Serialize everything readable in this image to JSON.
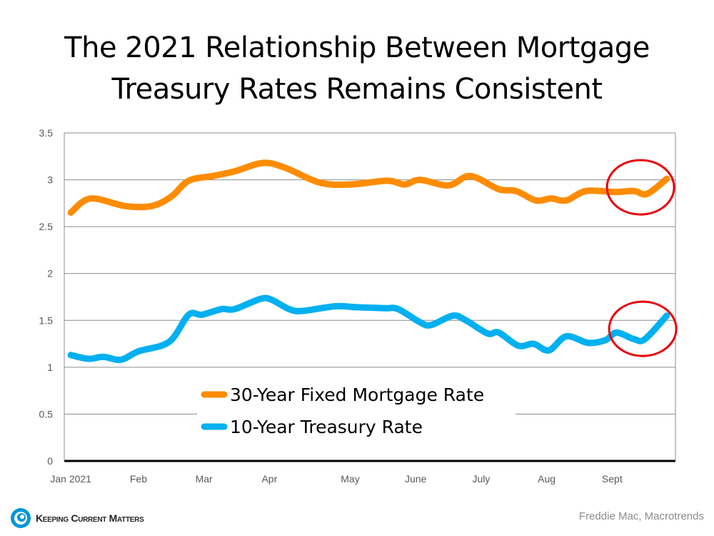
{
  "chart_data": {
    "type": "line",
    "title_lines": [
      "The 2021 Relationship Between Mortgage",
      "Treasury Rates Remains Consistent"
    ],
    "xlabel": "",
    "ylabel": "",
    "ylim": [
      0,
      3.5
    ],
    "xlim": [
      "2021-01-04",
      "2021-10-11"
    ],
    "yticks": [
      "0",
      "0.5",
      "1",
      "1.5",
      "2",
      "2.5",
      "3",
      "3.5"
    ],
    "xticks": [
      {
        "label": "Jan 2021",
        "date": "2021-01-07"
      },
      {
        "label": "Feb",
        "date": "2021-02-07"
      },
      {
        "label": "Mar",
        "date": "2021-03-09"
      },
      {
        "label": "Apr",
        "date": "2021-04-08"
      },
      {
        "label": "May",
        "date": "2021-05-15"
      },
      {
        "label": "June",
        "date": "2021-06-14"
      },
      {
        "label": "July",
        "date": "2021-07-14"
      },
      {
        "label": "Aug",
        "date": "2021-08-13"
      },
      {
        "label": "Sept",
        "date": "2021-09-12"
      }
    ],
    "grid": true,
    "legend_position": "bottom-center",
    "series": [
      {
        "name": "30-Year Fixed Mortgage Rate",
        "color": "#FF8C00",
        "points": [
          [
            "2021-01-07",
            2.65
          ],
          [
            "2021-01-16",
            2.8
          ],
          [
            "2021-02-01",
            2.72
          ],
          [
            "2021-02-13",
            2.72
          ],
          [
            "2021-02-22",
            2.82
          ],
          [
            "2021-03-02",
            2.99
          ],
          [
            "2021-03-13",
            3.04
          ],
          [
            "2021-03-23",
            3.09
          ],
          [
            "2021-04-05",
            3.18
          ],
          [
            "2021-04-15",
            3.13
          ],
          [
            "2021-05-01",
            2.97
          ],
          [
            "2021-05-15",
            2.95
          ],
          [
            "2021-06-01",
            2.99
          ],
          [
            "2021-06-09",
            2.95
          ],
          [
            "2021-06-16",
            3.0
          ],
          [
            "2021-06-29",
            2.94
          ],
          [
            "2021-07-09",
            3.04
          ],
          [
            "2021-07-22",
            2.9
          ],
          [
            "2021-07-30",
            2.88
          ],
          [
            "2021-08-08",
            2.78
          ],
          [
            "2021-08-15",
            2.8
          ],
          [
            "2021-08-22",
            2.78
          ],
          [
            "2021-08-31",
            2.88
          ],
          [
            "2021-09-13",
            2.87
          ],
          [
            "2021-09-22",
            2.88
          ],
          [
            "2021-09-28",
            2.85
          ],
          [
            "2021-10-07",
            3.01
          ]
        ]
      },
      {
        "name": "10-Year Treasury Rate",
        "color": "#00B0F0",
        "points": [
          [
            "2021-01-07",
            1.13
          ],
          [
            "2021-01-15",
            1.09
          ],
          [
            "2021-01-22",
            1.11
          ],
          [
            "2021-01-30",
            1.08
          ],
          [
            "2021-02-07",
            1.17
          ],
          [
            "2021-02-21",
            1.27
          ],
          [
            "2021-03-02",
            1.56
          ],
          [
            "2021-03-08",
            1.56
          ],
          [
            "2021-03-17",
            1.62
          ],
          [
            "2021-03-23",
            1.62
          ],
          [
            "2021-04-04",
            1.73
          ],
          [
            "2021-04-09",
            1.72
          ],
          [
            "2021-04-17",
            1.62
          ],
          [
            "2021-04-23",
            1.6
          ],
          [
            "2021-05-08",
            1.65
          ],
          [
            "2021-05-18",
            1.64
          ],
          [
            "2021-05-31",
            1.63
          ],
          [
            "2021-06-06",
            1.62
          ],
          [
            "2021-06-16",
            1.48
          ],
          [
            "2021-06-21",
            1.45
          ],
          [
            "2021-07-01",
            1.55
          ],
          [
            "2021-07-07",
            1.5
          ],
          [
            "2021-07-17",
            1.36
          ],
          [
            "2021-07-22",
            1.37
          ],
          [
            "2021-07-31",
            1.23
          ],
          [
            "2021-08-07",
            1.25
          ],
          [
            "2021-08-14",
            1.18
          ],
          [
            "2021-08-22",
            1.33
          ],
          [
            "2021-09-01",
            1.26
          ],
          [
            "2021-09-09",
            1.29
          ],
          [
            "2021-09-14",
            1.37
          ],
          [
            "2021-09-22",
            1.3
          ],
          [
            "2021-09-27",
            1.3
          ],
          [
            "2021-10-07",
            1.55
          ]
        ]
      }
    ],
    "annotations": [
      {
        "shape": "ellipse",
        "color": "#E8000B",
        "date": "2021-09-25",
        "value": 2.92
      },
      {
        "shape": "ellipse",
        "color": "#E8000B",
        "date": "2021-09-26",
        "value": 1.41
      }
    ]
  },
  "footer": {
    "logo_text": "Keeping Current Matters",
    "source": "Freddie Mac, Macrotrends",
    "logo_color": "#0096D6"
  }
}
